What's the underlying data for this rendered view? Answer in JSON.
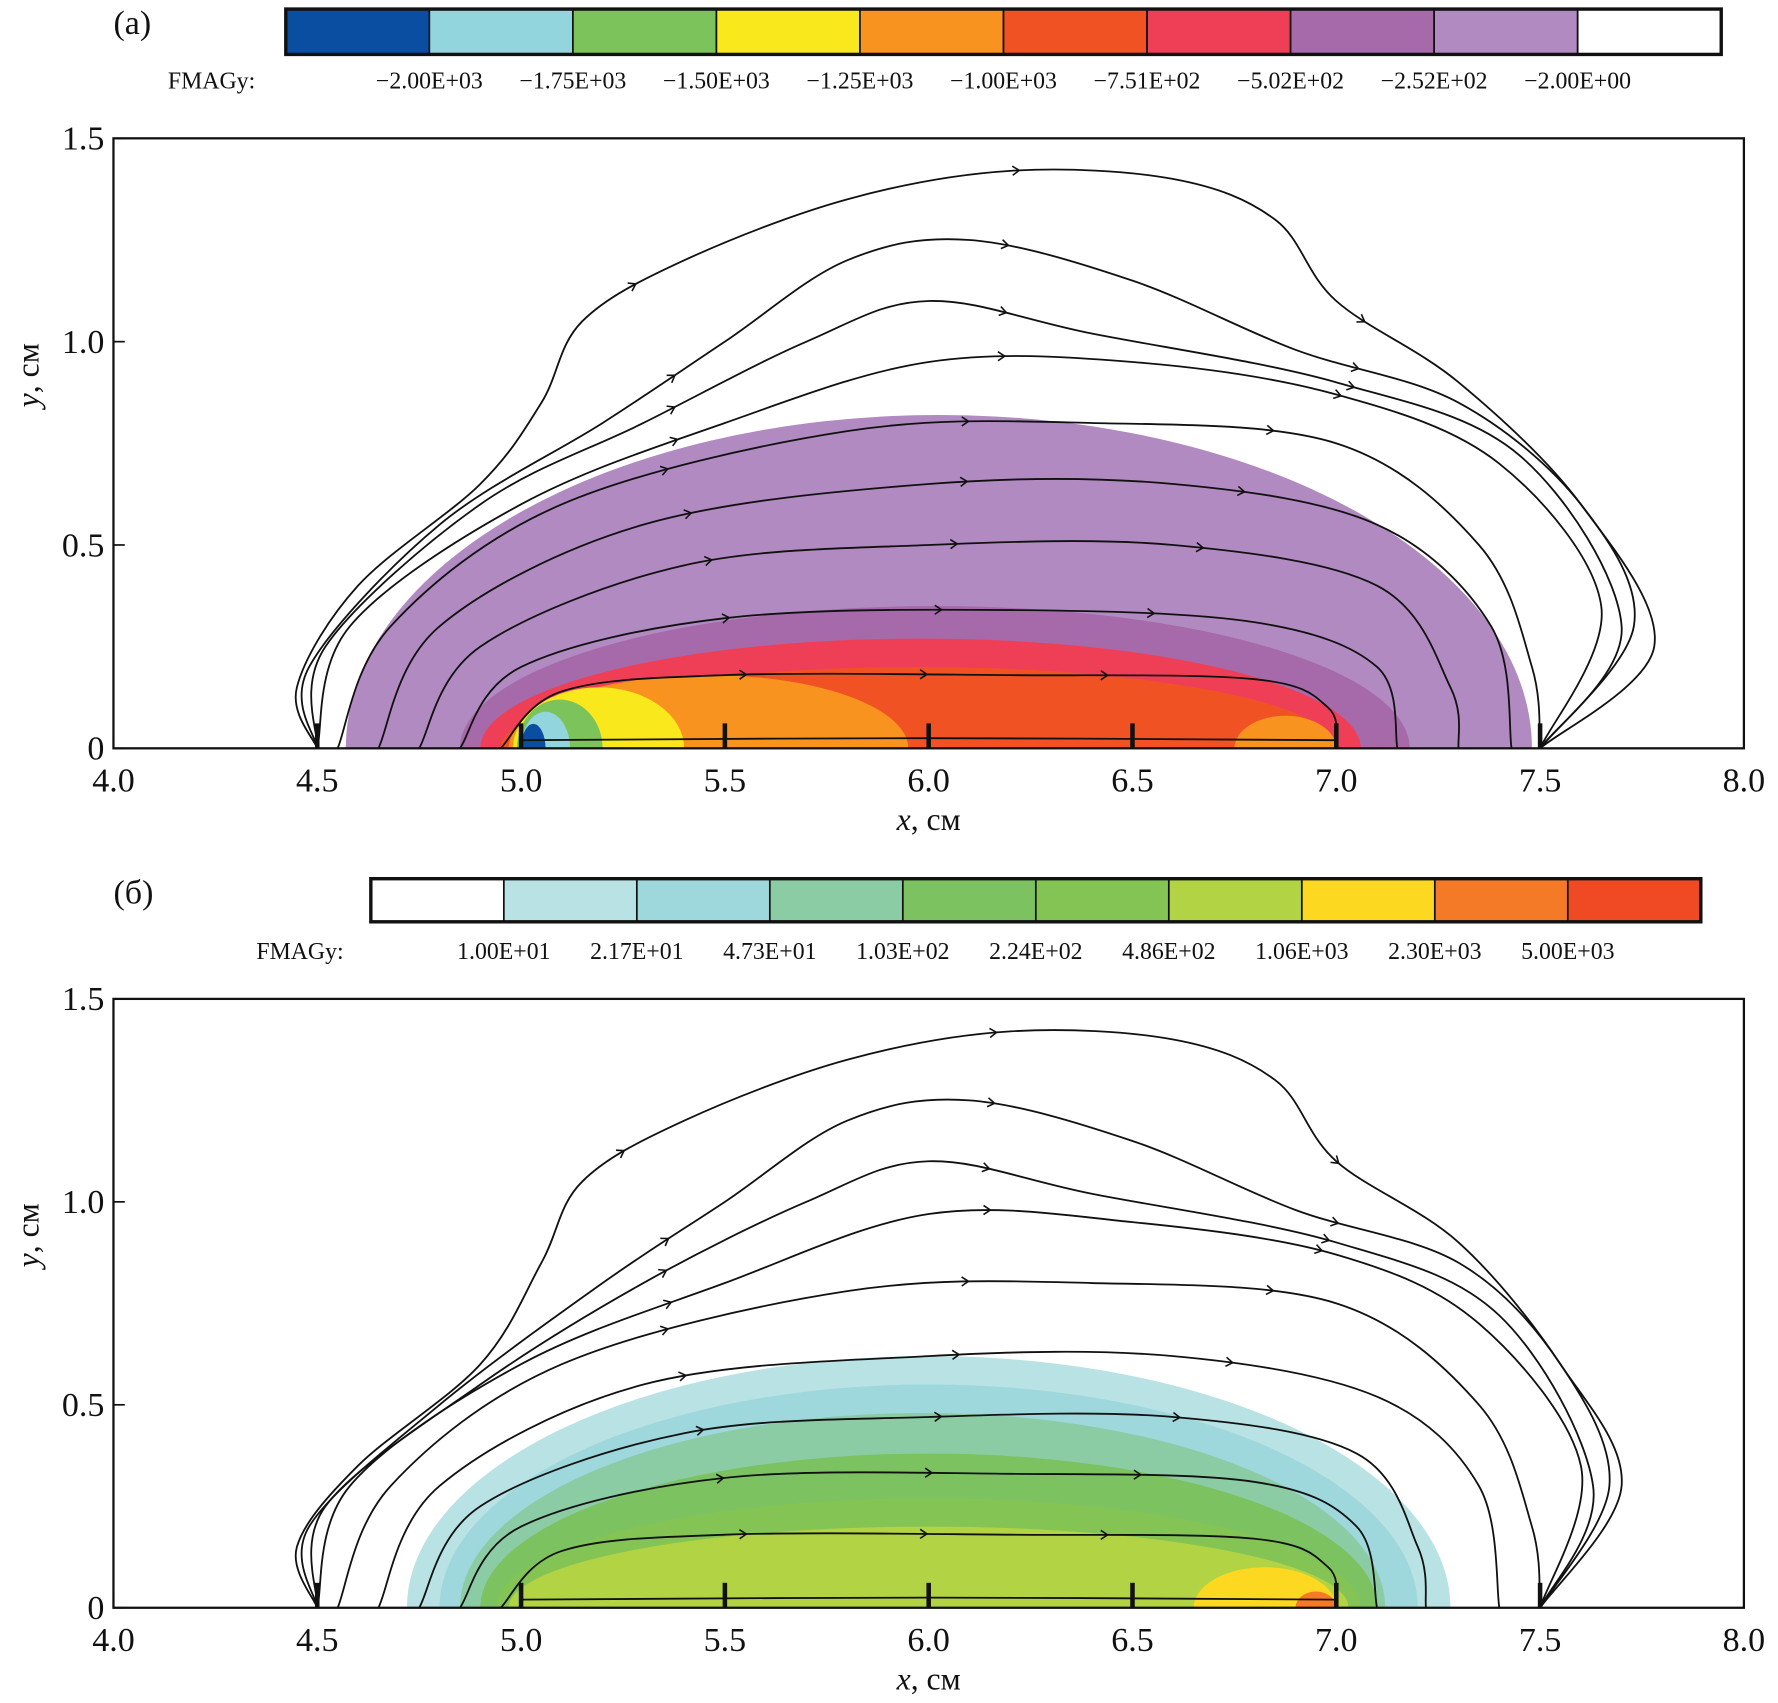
{
  "chart_data": [
    {
      "type": "heatmap",
      "panel_label": "(a)",
      "colorbar": {
        "title": "FMAGy:",
        "colors": [
          "#0a4ea2",
          "#92d5dc",
          "#7dc35b",
          "#f9e81c",
          "#f7931e",
          "#f05224",
          "#ef3f57",
          "#a66aab",
          "#b08ac0",
          "#ffffff"
        ],
        "labels": [
          "−2.00E+03",
          "−1.75E+03",
          "−1.50E+03",
          "−1.25E+03",
          "−1.00E+03",
          "−7.51E+02",
          "−5.02E+02",
          "−2.52E+02",
          "−2.00E+00"
        ]
      },
      "xlabel_var": "x",
      "xlabel_unit": ", см",
      "ylabel_var": "y",
      "ylabel_unit": ", см",
      "xlim": [
        4.0,
        8.0
      ],
      "ylim": [
        0,
        1.5
      ],
      "xticks": [
        "4.0",
        "4.5",
        "5.0",
        "5.5",
        "6.0",
        "6.5",
        "7.0",
        "7.5",
        "8.0"
      ],
      "yticks": [
        "0",
        "0.5",
        "1.0",
        "1.5"
      ],
      "regions": [
        {
          "color": "#b08ac0",
          "x0": 4.57,
          "x1": 7.48,
          "h": 0.82
        },
        {
          "color": "#a66aab",
          "x0": 4.85,
          "x1": 7.18,
          "h": 0.35
        },
        {
          "color": "#ef3f57",
          "x0": 4.9,
          "x1": 7.06,
          "h": 0.27
        },
        {
          "color": "#f05224",
          "x0": 4.95,
          "x1": 7.0,
          "h": 0.2
        },
        {
          "color": "#f7931e",
          "x0": 6.75,
          "x1": 7.0,
          "h": 0.08
        },
        {
          "color": "#f7931e",
          "x0": 4.97,
          "x1": 5.95,
          "h": 0.18
        },
        {
          "color": "#f9e81c",
          "x0": 4.98,
          "x1": 5.4,
          "h": 0.15
        },
        {
          "color": "#7dc35b",
          "x0": 4.99,
          "x1": 5.2,
          "h": 0.12
        },
        {
          "color": "#92d5dc",
          "x0": 5.0,
          "x1": 5.12,
          "h": 0.09
        },
        {
          "color": "#0a4ea2",
          "x0": 5.0,
          "x1": 5.06,
          "h": 0.06
        }
      ],
      "markers": [
        4.5,
        5.0,
        5.5,
        6.0,
        6.5,
        7.0,
        7.5
      ],
      "streamlines": [
        [
          [
            4.5,
            0
          ],
          [
            4.45,
            0.15
          ],
          [
            4.6,
            0.4
          ],
          [
            4.9,
            0.65
          ],
          [
            5.05,
            0.85
          ],
          [
            5.15,
            1.05
          ],
          [
            5.4,
            1.2
          ],
          [
            5.8,
            1.35
          ],
          [
            6.2,
            1.42
          ],
          [
            6.6,
            1.4
          ],
          [
            6.85,
            1.3
          ],
          [
            7.0,
            1.1
          ],
          [
            7.3,
            0.9
          ],
          [
            7.6,
            0.6
          ],
          [
            7.78,
            0.25
          ],
          [
            7.5,
            0
          ]
        ],
        [
          [
            4.5,
            0
          ],
          [
            4.48,
            0.2
          ],
          [
            4.8,
            0.55
          ],
          [
            5.2,
            0.8
          ],
          [
            5.5,
            1.0
          ],
          [
            5.8,
            1.2
          ],
          [
            6.1,
            1.25
          ],
          [
            6.5,
            1.15
          ],
          [
            6.9,
            0.98
          ],
          [
            7.3,
            0.85
          ],
          [
            7.6,
            0.6
          ],
          [
            7.73,
            0.3
          ],
          [
            7.5,
            0
          ]
        ],
        [
          [
            4.5,
            0
          ],
          [
            4.52,
            0.25
          ],
          [
            4.9,
            0.6
          ],
          [
            5.3,
            0.8
          ],
          [
            5.7,
            1.0
          ],
          [
            6.0,
            1.1
          ],
          [
            6.4,
            1.02
          ],
          [
            7.0,
            0.9
          ],
          [
            7.45,
            0.72
          ],
          [
            7.7,
            0.3
          ],
          [
            7.5,
            0
          ]
        ],
        [
          [
            4.5,
            0
          ],
          [
            4.58,
            0.3
          ],
          [
            5.0,
            0.6
          ],
          [
            5.5,
            0.8
          ],
          [
            6.0,
            0.95
          ],
          [
            6.5,
            0.95
          ],
          [
            7.0,
            0.87
          ],
          [
            7.4,
            0.7
          ],
          [
            7.65,
            0.35
          ],
          [
            7.5,
            0
          ]
        ],
        [
          [
            4.55,
            0
          ],
          [
            4.68,
            0.3
          ],
          [
            5.1,
            0.6
          ],
          [
            5.8,
            0.78
          ],
          [
            6.4,
            0.8
          ],
          [
            7.0,
            0.75
          ],
          [
            7.35,
            0.5
          ],
          [
            7.48,
            0.2
          ],
          [
            7.5,
            0
          ]
        ],
        [
          [
            4.65,
            0
          ],
          [
            4.8,
            0.3
          ],
          [
            5.3,
            0.55
          ],
          [
            6.0,
            0.65
          ],
          [
            6.6,
            0.65
          ],
          [
            7.1,
            0.55
          ],
          [
            7.38,
            0.3
          ],
          [
            7.43,
            0
          ]
        ],
        [
          [
            4.75,
            0
          ],
          [
            4.9,
            0.25
          ],
          [
            5.4,
            0.45
          ],
          [
            6.0,
            0.5
          ],
          [
            6.6,
            0.5
          ],
          [
            7.1,
            0.4
          ],
          [
            7.28,
            0.15
          ],
          [
            7.3,
            0
          ]
        ],
        [
          [
            4.85,
            0
          ],
          [
            5.0,
            0.2
          ],
          [
            5.5,
            0.32
          ],
          [
            6.2,
            0.34
          ],
          [
            6.8,
            0.31
          ],
          [
            7.1,
            0.2
          ],
          [
            7.15,
            0
          ]
        ],
        [
          [
            4.95,
            0
          ],
          [
            5.1,
            0.14
          ],
          [
            5.5,
            0.18
          ],
          [
            6.2,
            0.18
          ],
          [
            6.8,
            0.17
          ],
          [
            6.98,
            0.1
          ],
          [
            7.0,
            0
          ]
        ],
        [
          [
            5.0,
            0.02
          ],
          [
            6.0,
            0.025
          ],
          [
            7.0,
            0.02
          ]
        ]
      ]
    },
    {
      "type": "heatmap",
      "panel_label": "(б)",
      "colorbar": {
        "title": "FMAGy:",
        "colors": [
          "#ffffff",
          "#b8e2e4",
          "#9ed8dc",
          "#8ccca5",
          "#7cc260",
          "#84c455",
          "#b2d344",
          "#fcd920",
          "#f47a28",
          "#ef4a23"
        ],
        "labels": [
          "1.00E+01",
          "2.17E+01",
          "4.73E+01",
          "1.03E+02",
          "2.24E+02",
          "4.86E+02",
          "1.06E+03",
          "2.30E+03",
          "5.00E+03"
        ]
      },
      "xlabel_var": "x",
      "xlabel_unit": ", см",
      "ylabel_var": "y",
      "ylabel_unit": ", см",
      "xlim": [
        4.0,
        8.0
      ],
      "ylim": [
        0,
        1.5
      ],
      "xticks": [
        "4.0",
        "4.5",
        "5.0",
        "5.5",
        "6.0",
        "6.5",
        "7.0",
        "7.5",
        "8.0"
      ],
      "yticks": [
        "0",
        "0.5",
        "1.0",
        "1.5"
      ],
      "regions": [
        {
          "color": "#b8e2e4",
          "x0": 4.72,
          "x1": 7.28,
          "h": 0.62
        },
        {
          "color": "#9ed8dc",
          "x0": 4.8,
          "x1": 7.2,
          "h": 0.55
        },
        {
          "color": "#8ccca5",
          "x0": 4.85,
          "x1": 7.12,
          "h": 0.48
        },
        {
          "color": "#7cc260",
          "x0": 4.9,
          "x1": 7.1,
          "h": 0.38
        },
        {
          "color": "#84c455",
          "x0": 4.94,
          "x1": 7.06,
          "h": 0.27
        },
        {
          "color": "#b2d344",
          "x0": 4.97,
          "x1": 7.03,
          "h": 0.2
        },
        {
          "color": "#fcd920",
          "x0": 6.65,
          "x1": 7.0,
          "h": 0.1
        },
        {
          "color": "#f47a28",
          "x0": 6.9,
          "x1": 7.0,
          "h": 0.04
        }
      ],
      "markers": [
        4.5,
        5.0,
        5.5,
        6.0,
        6.5,
        7.0,
        7.5
      ],
      "streamlines": [
        [
          [
            4.5,
            0
          ],
          [
            4.45,
            0.15
          ],
          [
            4.6,
            0.35
          ],
          [
            4.9,
            0.6
          ],
          [
            5.05,
            0.85
          ],
          [
            5.15,
            1.05
          ],
          [
            5.4,
            1.2
          ],
          [
            5.8,
            1.35
          ],
          [
            6.2,
            1.42
          ],
          [
            6.6,
            1.4
          ],
          [
            6.85,
            1.3
          ],
          [
            7.0,
            1.1
          ],
          [
            7.3,
            0.9
          ],
          [
            7.55,
            0.6
          ],
          [
            7.7,
            0.3
          ],
          [
            7.5,
            0
          ]
        ],
        [
          [
            4.5,
            0
          ],
          [
            4.48,
            0.2
          ],
          [
            4.8,
            0.5
          ],
          [
            5.2,
            0.8
          ],
          [
            5.5,
            1.0
          ],
          [
            5.8,
            1.2
          ],
          [
            6.1,
            1.25
          ],
          [
            6.5,
            1.15
          ],
          [
            6.9,
            0.98
          ],
          [
            7.3,
            0.85
          ],
          [
            7.55,
            0.6
          ],
          [
            7.67,
            0.3
          ],
          [
            7.5,
            0
          ]
        ],
        [
          [
            4.5,
            0
          ],
          [
            4.52,
            0.25
          ],
          [
            4.9,
            0.55
          ],
          [
            5.3,
            0.8
          ],
          [
            5.7,
            1.0
          ],
          [
            6.0,
            1.1
          ],
          [
            6.4,
            1.02
          ],
          [
            7.0,
            0.9
          ],
          [
            7.4,
            0.72
          ],
          [
            7.63,
            0.3
          ],
          [
            7.5,
            0
          ]
        ],
        [
          [
            4.5,
            0
          ],
          [
            4.58,
            0.3
          ],
          [
            5.0,
            0.6
          ],
          [
            5.5,
            0.8
          ],
          [
            6.0,
            0.97
          ],
          [
            6.5,
            0.95
          ],
          [
            7.0,
            0.87
          ],
          [
            7.35,
            0.7
          ],
          [
            7.6,
            0.35
          ],
          [
            7.5,
            0
          ]
        ],
        [
          [
            4.55,
            0
          ],
          [
            4.68,
            0.3
          ],
          [
            5.1,
            0.6
          ],
          [
            5.8,
            0.78
          ],
          [
            6.4,
            0.8
          ],
          [
            7.0,
            0.75
          ],
          [
            7.35,
            0.5
          ],
          [
            7.48,
            0.2
          ],
          [
            7.5,
            0
          ]
        ],
        [
          [
            4.65,
            0
          ],
          [
            4.8,
            0.3
          ],
          [
            5.3,
            0.55
          ],
          [
            6.0,
            0.62
          ],
          [
            6.6,
            0.62
          ],
          [
            7.1,
            0.52
          ],
          [
            7.35,
            0.3
          ],
          [
            7.4,
            0
          ]
        ],
        [
          [
            4.75,
            0
          ],
          [
            4.9,
            0.25
          ],
          [
            5.4,
            0.43
          ],
          [
            6.0,
            0.47
          ],
          [
            6.6,
            0.47
          ],
          [
            7.05,
            0.38
          ],
          [
            7.2,
            0.15
          ],
          [
            7.22,
            0
          ]
        ],
        [
          [
            4.85,
            0
          ],
          [
            5.0,
            0.2
          ],
          [
            5.5,
            0.32
          ],
          [
            6.2,
            0.33
          ],
          [
            6.8,
            0.31
          ],
          [
            7.05,
            0.2
          ],
          [
            7.1,
            0
          ]
        ],
        [
          [
            4.95,
            0
          ],
          [
            5.1,
            0.14
          ],
          [
            5.5,
            0.18
          ],
          [
            6.2,
            0.18
          ],
          [
            6.8,
            0.17
          ],
          [
            6.98,
            0.1
          ],
          [
            7.0,
            0
          ]
        ],
        [
          [
            5.0,
            0.02
          ],
          [
            6.0,
            0.025
          ],
          [
            7.0,
            0.02
          ]
        ]
      ]
    }
  ]
}
